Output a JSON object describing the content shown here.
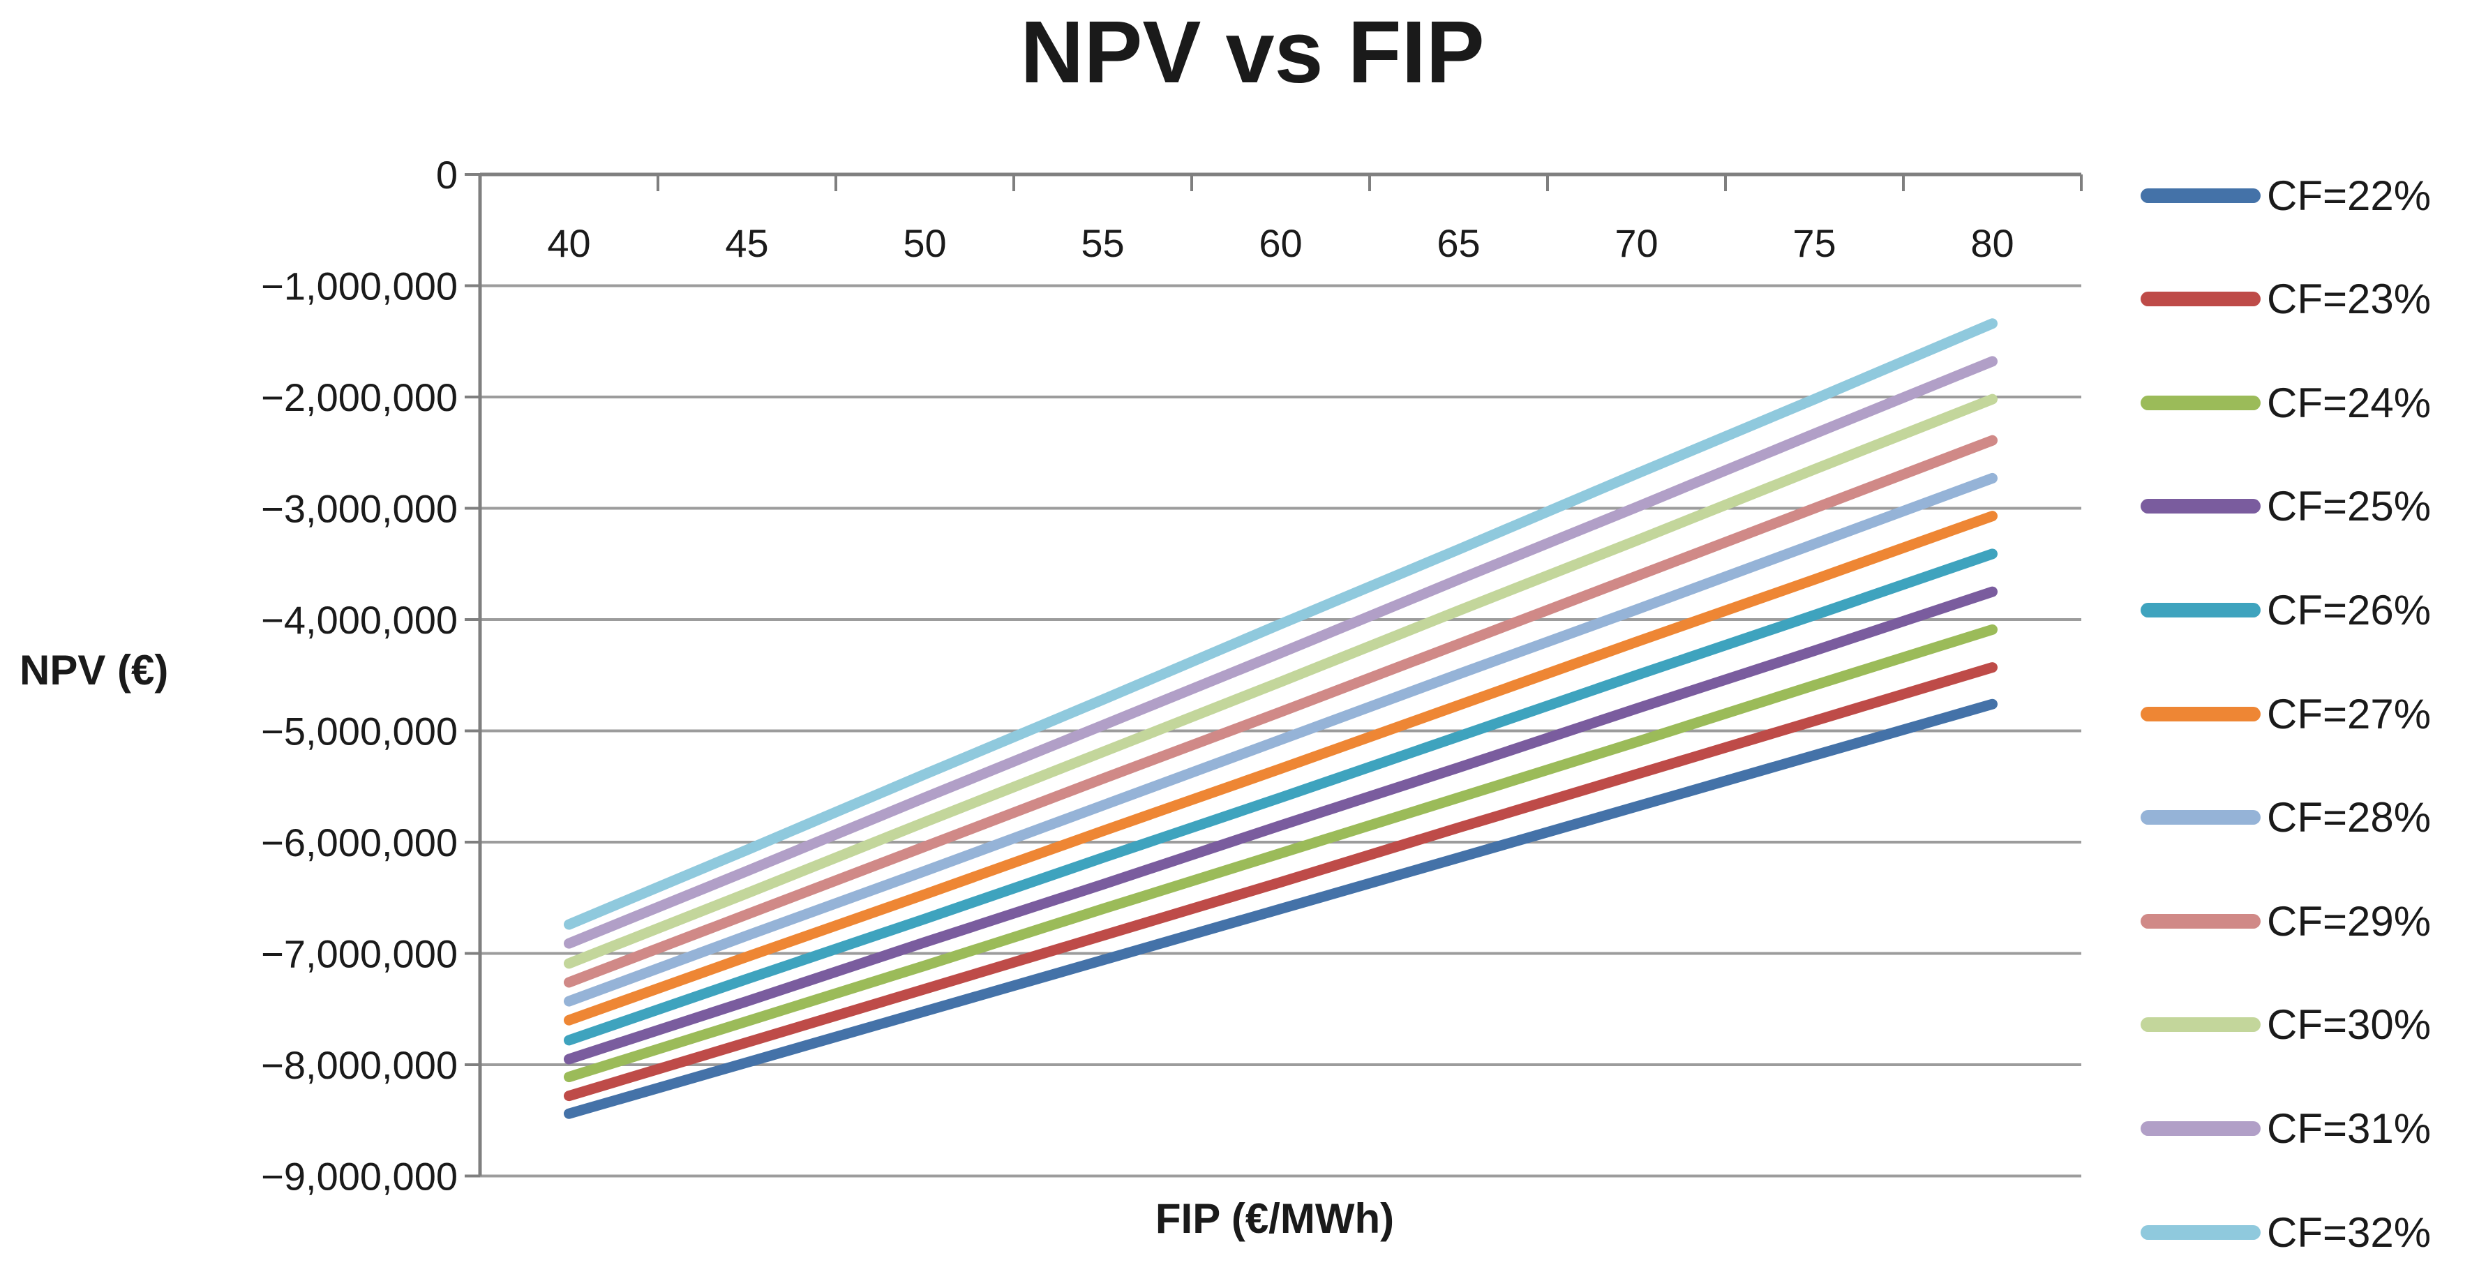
{
  "chart": {
    "title": "NPV vs FIP",
    "y_axis_title": "NPV (€)",
    "x_axis_title": "FIP (€/MWh)",
    "y_tick_labels": [
      "0",
      "−1,000,000",
      "−2,000,000",
      "−3,000,000",
      "−4,000,000",
      "−5,000,000",
      "−6,000,000",
      "−7,000,000",
      "−8,000,000",
      "−9,000,000"
    ],
    "x_tick_labels": [
      "40",
      "45",
      "50",
      "55",
      "60",
      "65",
      "70",
      "75",
      "80"
    ]
  },
  "chart_data": {
    "type": "line",
    "title": "NPV vs FIP",
    "xlabel": "FIP (€/MWh)",
    "ylabel": "NPV (€)",
    "x": [
      40,
      45,
      50,
      55,
      60,
      65,
      70,
      75,
      80
    ],
    "xlim": [
      40,
      80
    ],
    "ylim": [
      -9000000,
      0
    ],
    "y_tick_step": 1000000,
    "grid": true,
    "legend_position": "right",
    "axis_color": "#7f7f7f",
    "grid_color": "#9c9c9c",
    "series": [
      {
        "name": "CF=22%",
        "color": "#4472A8",
        "values": [
          -8440000,
          -7980000,
          -7520000,
          -7060000,
          -6600000,
          -6140000,
          -5680000,
          -5220000,
          -4760000
        ]
      },
      {
        "name": "CF=23%",
        "color": "#BE4B48",
        "values": [
          -8280000,
          -7800000,
          -7320000,
          -6840000,
          -6360000,
          -5870000,
          -5390000,
          -4910000,
          -4430000
        ]
      },
      {
        "name": "CF=24%",
        "color": "#9BBB59",
        "values": [
          -8110000,
          -7610000,
          -7110000,
          -6600000,
          -6100000,
          -5600000,
          -5100000,
          -4590000,
          -4090000
        ]
      },
      {
        "name": "CF=25%",
        "color": "#7A5C9E",
        "values": [
          -7950000,
          -7430000,
          -6900000,
          -6380000,
          -5850000,
          -5330000,
          -4800000,
          -4280000,
          -3750000
        ]
      },
      {
        "name": "CF=26%",
        "color": "#3EA3BE",
        "values": [
          -7780000,
          -7230000,
          -6690000,
          -6140000,
          -5600000,
          -5050000,
          -4500000,
          -3960000,
          -3410000
        ]
      },
      {
        "name": "CF=27%",
        "color": "#EE8634",
        "values": [
          -7600000,
          -7030000,
          -6470000,
          -5900000,
          -5340000,
          -4770000,
          -4200000,
          -3640000,
          -3070000
        ]
      },
      {
        "name": "CF=28%",
        "color": "#95B3D7",
        "values": [
          -7430000,
          -6840000,
          -6260000,
          -5670000,
          -5080000,
          -4490000,
          -3910000,
          -3320000,
          -2730000
        ]
      },
      {
        "name": "CF=29%",
        "color": "#D08987",
        "values": [
          -7260000,
          -6650000,
          -6040000,
          -5430000,
          -4830000,
          -4220000,
          -3610000,
          -3000000,
          -2390000
        ]
      },
      {
        "name": "CF=30%",
        "color": "#C3D69B",
        "values": [
          -7090000,
          -6460000,
          -5820000,
          -5190000,
          -4560000,
          -3920000,
          -3290000,
          -2650000,
          -2020000
        ]
      },
      {
        "name": "CF=31%",
        "color": "#B19FC7",
        "values": [
          -6910000,
          -6260000,
          -5600000,
          -4950000,
          -4300000,
          -3640000,
          -2990000,
          -2330000,
          -1680000
        ]
      },
      {
        "name": "CF=32%",
        "color": "#8FC9DD",
        "values": [
          -6740000,
          -6070000,
          -5390000,
          -4720000,
          -4040000,
          -3370000,
          -2690000,
          -2020000,
          -1340000
        ]
      }
    ]
  }
}
